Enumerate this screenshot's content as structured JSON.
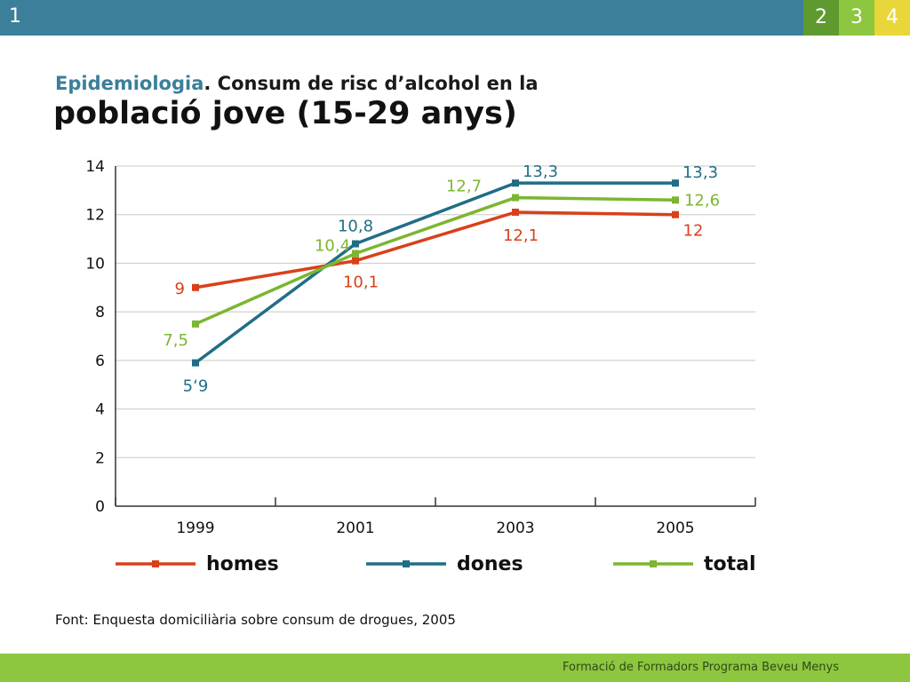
{
  "header": {
    "slide_number": "1",
    "tabs": [
      "2",
      "3",
      "4"
    ]
  },
  "title": {
    "accent": "Epidemiologia",
    "line1_rest": ". Consum de risc d’alcohol en la",
    "line2": "població jove (15-29 anys)"
  },
  "chart_data": {
    "type": "line",
    "categories": [
      "1999",
      "2001",
      "2003",
      "2005"
    ],
    "ylim": [
      0,
      14
    ],
    "yticks": [
      "0",
      "2",
      "4",
      "6",
      "8",
      "10",
      "12",
      "14"
    ],
    "grid": true,
    "legend_position": "bottom",
    "series": [
      {
        "name": "homes",
        "color": "#d9401a",
        "values": [
          9,
          10.1,
          12.1,
          12
        ],
        "labels": [
          "9",
          "10,1",
          "12,1",
          "12"
        ]
      },
      {
        "name": "dones",
        "color": "#1f6e86",
        "values": [
          5.9,
          10.8,
          13.3,
          13.3
        ],
        "labels": [
          "5‘9",
          "10,8",
          "13,3",
          "13,3"
        ]
      },
      {
        "name": "total",
        "color": "#7cb631",
        "values": [
          7.5,
          10.4,
          12.7,
          12.6
        ],
        "labels": [
          "7,5",
          "10,4",
          "12,7",
          "12,6"
        ]
      }
    ]
  },
  "source": "Font: Enquesta domiciliària sobre consum de drogues, 2005",
  "footer": "Formació de Formadors Programa Beveu Menys"
}
